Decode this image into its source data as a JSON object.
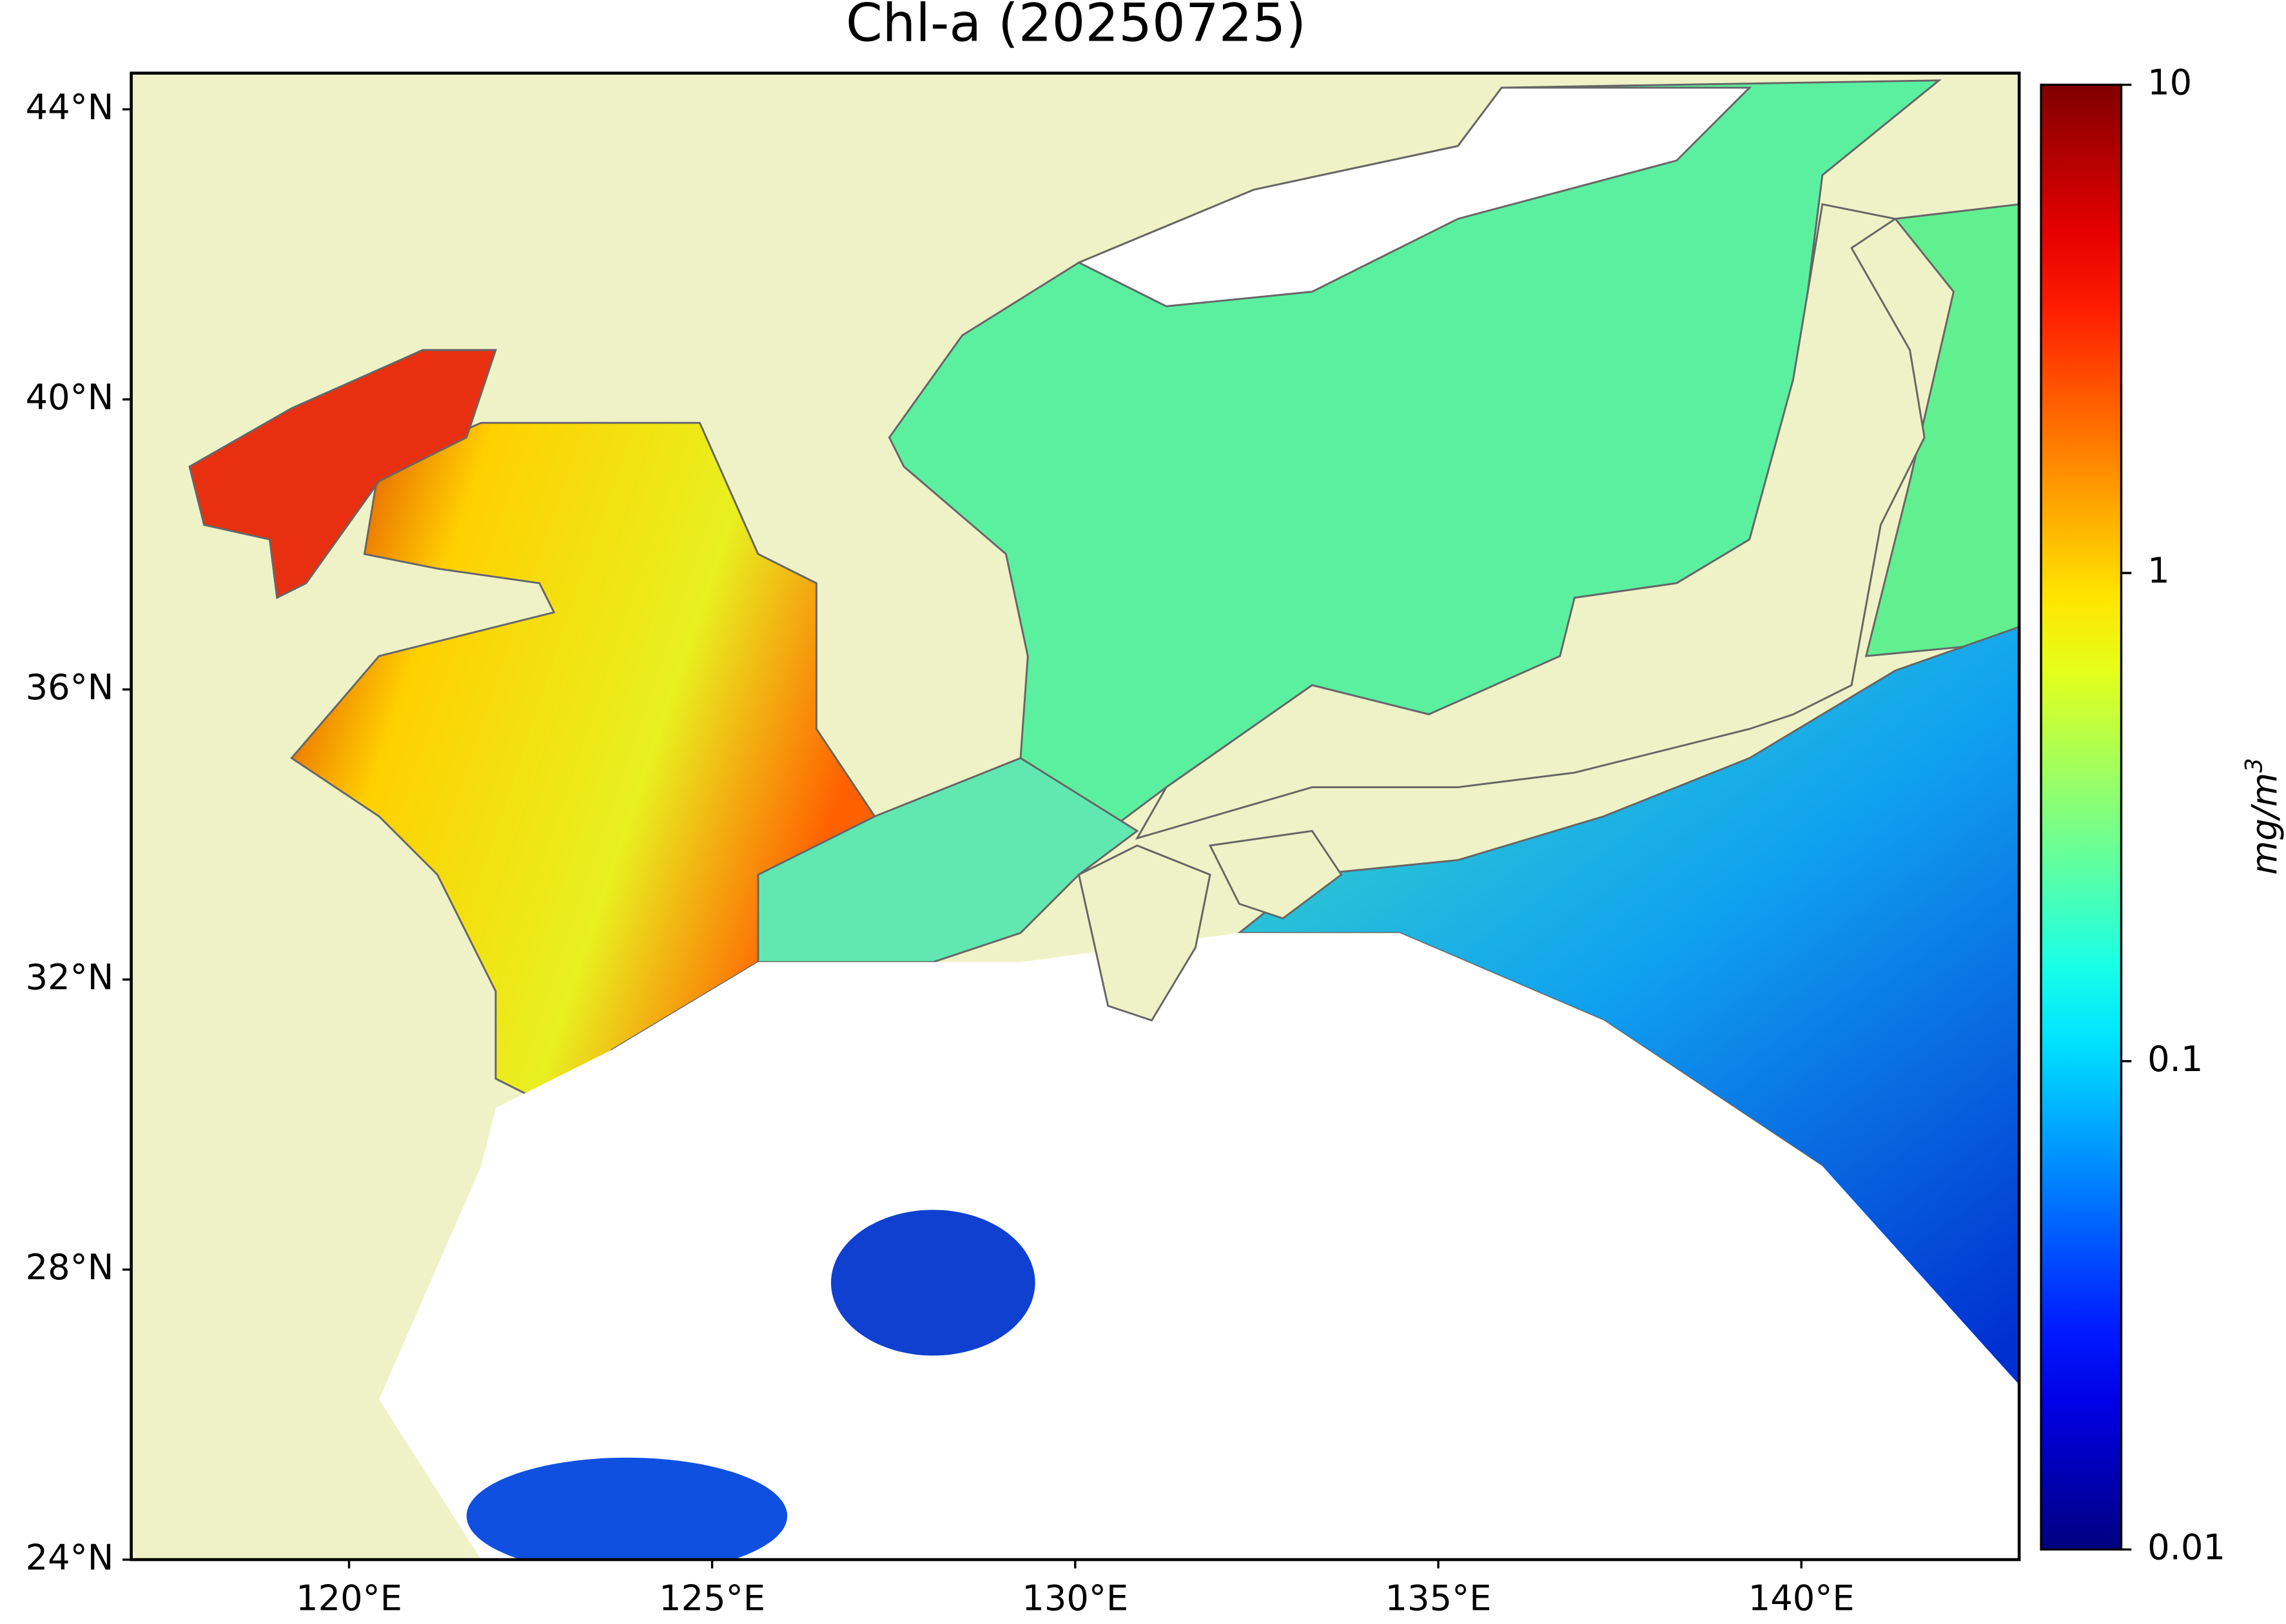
{
  "title": "Chl-a (20250725)",
  "map": {
    "type": "map",
    "xlim": [
      117,
      143
    ],
    "ylim": [
      24,
      44.5
    ],
    "xticks": [
      {
        "value": 120,
        "label": "120°E"
      },
      {
        "value": 125,
        "label": "125°E"
      },
      {
        "value": 130,
        "label": "130°E"
      },
      {
        "value": 135,
        "label": "135°E"
      },
      {
        "value": 140,
        "label": "140°E"
      }
    ],
    "yticks": [
      {
        "value": 24,
        "label": "24°N"
      },
      {
        "value": 28,
        "label": "28°N"
      },
      {
        "value": 32,
        "label": "32°N"
      },
      {
        "value": 36,
        "label": "36°N"
      },
      {
        "value": 40,
        "label": "40°N"
      },
      {
        "value": 44,
        "label": "44°N"
      }
    ]
  },
  "colorbar": {
    "colormap": "jet",
    "scale": "log",
    "lim": [
      0.01,
      10
    ],
    "ticks": [
      0.01,
      0.1,
      1,
      10
    ],
    "label": {
      "base": "mg/m",
      "sup": "3"
    }
  }
}
